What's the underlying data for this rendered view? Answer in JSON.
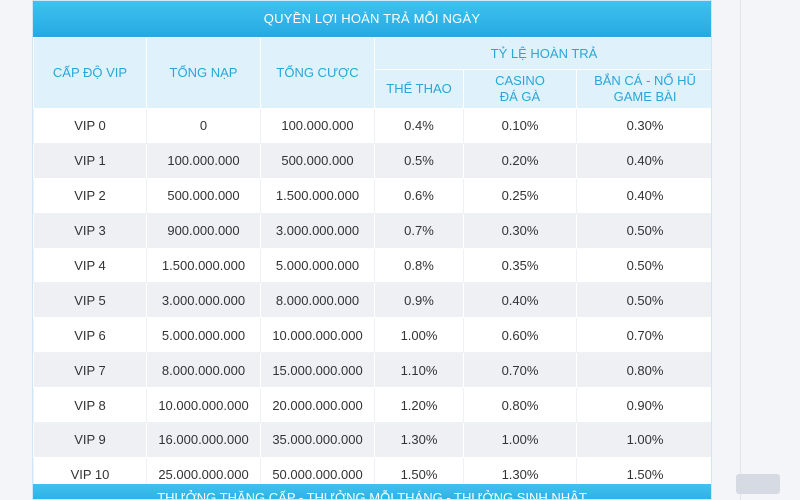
{
  "title": "QUYỀN LỢI HOÀN TRẢ MỖI NGÀY",
  "headers": {
    "level": "CẤP ĐỘ VIP",
    "deposit": "TỔNG NẠP",
    "bet": "TỔNG CƯỢC",
    "rate_group": "TỶ LỆ HOÀN TRẢ",
    "sports": "THỂ THAO",
    "casino_line1": "CASINO",
    "casino_line2": "ĐÁ GÀ",
    "fish_line1": "BẮN CÁ - NỔ HŨ",
    "fish_line2": "GAME BÀI"
  },
  "rows": [
    {
      "level": "VIP 0",
      "deposit": "0",
      "bet": "100.000.000",
      "sports": "0.4%",
      "casino": "0.10%",
      "fish": "0.30%"
    },
    {
      "level": "VIP 1",
      "deposit": "100.000.000",
      "bet": "500.000.000",
      "sports": "0.5%",
      "casino": "0.20%",
      "fish": "0.40%"
    },
    {
      "level": "VIP 2",
      "deposit": "500.000.000",
      "bet": "1.500.000.000",
      "sports": "0.6%",
      "casino": "0.25%",
      "fish": "0.40%"
    },
    {
      "level": "VIP 3",
      "deposit": "900.000.000",
      "bet": "3.000.000.000",
      "sports": "0.7%",
      "casino": "0.30%",
      "fish": "0.50%"
    },
    {
      "level": "VIP 4",
      "deposit": "1.500.000.000",
      "bet": "5.000.000.000",
      "sports": "0.8%",
      "casino": "0.35%",
      "fish": "0.50%"
    },
    {
      "level": "VIP 5",
      "deposit": "3.000.000.000",
      "bet": "8.000.000.000",
      "sports": "0.9%",
      "casino": "0.40%",
      "fish": "0.50%"
    },
    {
      "level": "VIP 6",
      "deposit": "5.000.000.000",
      "bet": "10.000.000.000",
      "sports": "1.00%",
      "casino": "0.60%",
      "fish": "0.70%"
    },
    {
      "level": "VIP 7",
      "deposit": "8.000.000.000",
      "bet": "15.000.000.000",
      "sports": "1.10%",
      "casino": "0.70%",
      "fish": "0.80%"
    },
    {
      "level": "VIP 8",
      "deposit": "10.000.000.000",
      "bet": "20.000.000.000",
      "sports": "1.20%",
      "casino": "0.80%",
      "fish": "0.90%"
    },
    {
      "level": "VIP 9",
      "deposit": "16.000.000.000",
      "bet": "35.000.000.000",
      "sports": "1.30%",
      "casino": "1.00%",
      "fish": "1.00%"
    },
    {
      "level": "VIP 10",
      "deposit": "25.000.000.000",
      "bet": "50.000.000.000",
      "sports": "1.50%",
      "casino": "1.30%",
      "fish": "1.50%"
    }
  ],
  "footer": "THƯỞNG THĂNG CẤP - THƯỞNG MỖI THÁNG - THƯỞNG SINH NHẬT"
}
